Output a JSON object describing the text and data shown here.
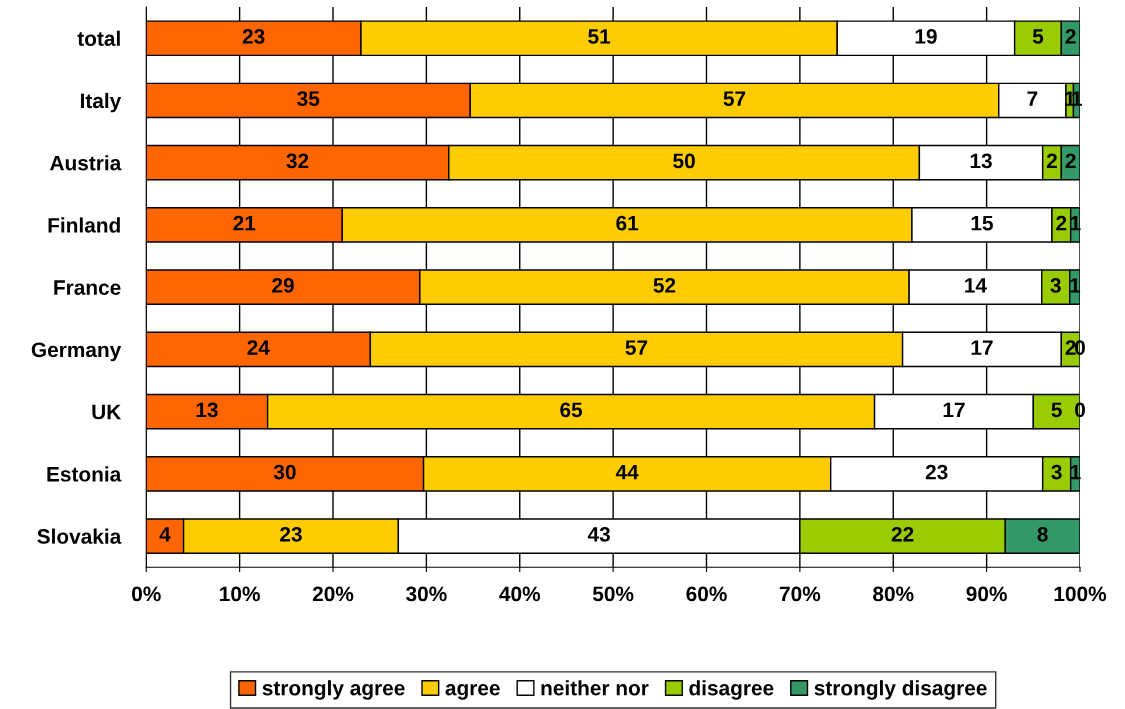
{
  "chart_data": {
    "type": "bar",
    "orientation": "horizontal",
    "stacked": true,
    "categories": [
      "total",
      "Italy",
      "Austria",
      "Finland",
      "France",
      "Germany",
      "UK",
      "Estonia",
      "Slovakia"
    ],
    "series": [
      {
        "name": "strongly agree",
        "color": "#ff6600",
        "values": [
          23,
          34.7,
          32.4,
          21,
          29.3,
          24,
          13,
          29.7,
          4
        ],
        "value_labels": [
          "23",
          "35",
          "32",
          "21",
          "29",
          "24",
          "13",
          "30",
          "4"
        ]
      },
      {
        "name": "agree",
        "color": "#ffcc00",
        "values": [
          51,
          56.6,
          50.4,
          61,
          52.4,
          57,
          65,
          43.6,
          23
        ],
        "value_labels": [
          "51",
          "57",
          "50",
          "61",
          "52",
          "57",
          "65",
          "44",
          "23"
        ]
      },
      {
        "name": "neither nor",
        "color": "#ffffff",
        "values": [
          19,
          7.2,
          13.2,
          15,
          14.2,
          17,
          17,
          22.7,
          43
        ],
        "value_labels": [
          "19",
          "7",
          "13",
          "15",
          "14",
          "17",
          "17",
          "23",
          "43"
        ]
      },
      {
        "name": "disagree",
        "color": "#99cc00",
        "values": [
          5,
          0.8,
          2,
          2,
          3,
          2,
          5,
          3,
          22
        ],
        "value_labels": [
          "5",
          "1",
          "2",
          "2",
          "3",
          "2",
          "5",
          "3",
          "22"
        ]
      },
      {
        "name": "strongly disagree",
        "color": "#339966",
        "values": [
          2,
          0.7,
          2,
          1,
          1.1,
          0,
          0,
          1,
          8
        ],
        "value_labels": [
          "2",
          "1",
          "2",
          "1",
          "1",
          "0",
          "0",
          "1",
          "8"
        ]
      }
    ],
    "xlim": [
      0,
      100
    ],
    "xticks": [
      {
        "value": 0,
        "label": "0%"
      },
      {
        "value": 10,
        "label": "10%"
      },
      {
        "value": 20,
        "label": "20%"
      },
      {
        "value": 30,
        "label": "30%"
      },
      {
        "value": 40,
        "label": "40%"
      },
      {
        "value": 50,
        "label": "50%"
      },
      {
        "value": 60,
        "label": "60%"
      },
      {
        "value": 70,
        "label": "70%"
      },
      {
        "value": 80,
        "label": "80%"
      },
      {
        "value": 90,
        "label": "90%"
      },
      {
        "value": 100,
        "label": "100%"
      }
    ],
    "grid": "x",
    "legend": "bottom"
  }
}
